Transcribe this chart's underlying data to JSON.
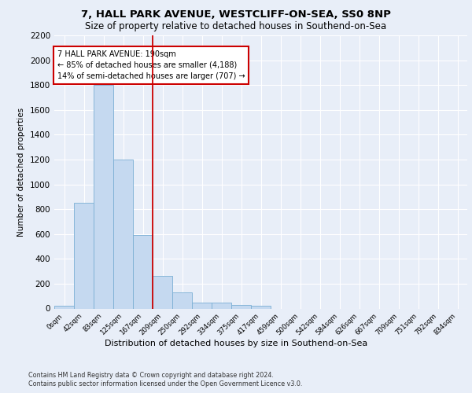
{
  "title1": "7, HALL PARK AVENUE, WESTCLIFF-ON-SEA, SS0 8NP",
  "title2": "Size of property relative to detached houses in Southend-on-Sea",
  "xlabel": "Distribution of detached houses by size in Southend-on-Sea",
  "ylabel": "Number of detached properties",
  "bar_labels": [
    "0sqm",
    "42sqm",
    "83sqm",
    "125sqm",
    "167sqm",
    "209sqm",
    "250sqm",
    "292sqm",
    "334sqm",
    "375sqm",
    "417sqm",
    "459sqm",
    "500sqm",
    "542sqm",
    "584sqm",
    "626sqm",
    "667sqm",
    "709sqm",
    "751sqm",
    "792sqm",
    "834sqm"
  ],
  "bar_heights": [
    25,
    850,
    1800,
    1200,
    590,
    260,
    130,
    50,
    45,
    30,
    20,
    0,
    0,
    0,
    0,
    0,
    0,
    0,
    0,
    0,
    0
  ],
  "bar_color": "#c5d9f0",
  "bar_edge_color": "#7bafd4",
  "vline_x": 5.0,
  "vline_color": "#cc0000",
  "annotation_text": "7 HALL PARK AVENUE: 190sqm\n← 85% of detached houses are smaller (4,188)\n14% of semi-detached houses are larger (707) →",
  "annotation_box_color": "white",
  "annotation_box_edge_color": "#cc0000",
  "ylim": [
    0,
    2200
  ],
  "yticks": [
    0,
    200,
    400,
    600,
    800,
    1000,
    1200,
    1400,
    1600,
    1800,
    2000,
    2200
  ],
  "footer1": "Contains HM Land Registry data © Crown copyright and database right 2024.",
  "footer2": "Contains public sector information licensed under the Open Government Licence v3.0.",
  "bg_color": "#e8eef8",
  "plot_bg_color": "#e8eef8",
  "grid_color": "#ffffff",
  "title1_fontsize": 9.5,
  "title2_fontsize": 8.5,
  "ylabel_fontsize": 7.5,
  "xlabel_fontsize": 8,
  "ytick_fontsize": 7.5,
  "xtick_fontsize": 6.2,
  "annot_fontsize": 7.0,
  "footer_fontsize": 5.8
}
